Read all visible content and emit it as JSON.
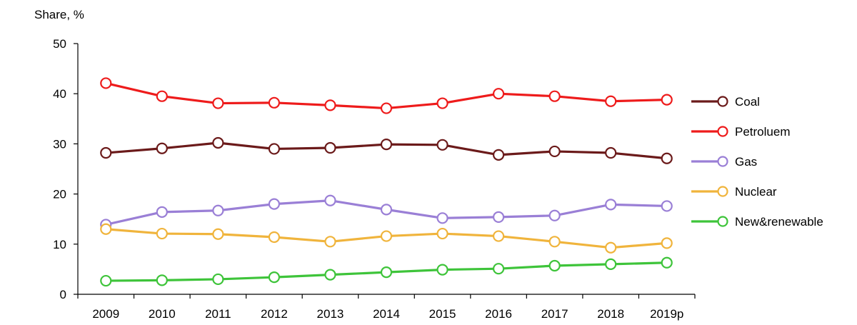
{
  "chart_data": {
    "type": "line",
    "ylabel": "Share, %",
    "xlabel": "",
    "ylim": [
      0,
      50
    ],
    "yticks": [
      0,
      10,
      20,
      30,
      40,
      50
    ],
    "categories": [
      "2009",
      "2010",
      "2011",
      "2012",
      "2013",
      "2014",
      "2015",
      "2016",
      "2017",
      "2018",
      "2019p"
    ],
    "grid": false,
    "legend_position": "right",
    "series": [
      {
        "name": "Coal",
        "color": "#6b1a1a",
        "values": [
          28.2,
          29.1,
          30.2,
          29.0,
          29.2,
          29.9,
          29.8,
          27.8,
          28.5,
          28.2,
          27.1
        ]
      },
      {
        "name": "Petroluem",
        "color": "#ee1b1b",
        "values": [
          42.1,
          39.5,
          38.1,
          38.2,
          37.7,
          37.1,
          38.1,
          40.0,
          39.5,
          38.5,
          38.8
        ]
      },
      {
        "name": "Gas",
        "color": "#9a7fd6",
        "values": [
          13.9,
          16.4,
          16.7,
          18.0,
          18.7,
          16.9,
          15.2,
          15.4,
          15.7,
          17.9,
          17.6
        ]
      },
      {
        "name": "Nuclear",
        "color": "#f0b43c",
        "values": [
          13.0,
          12.1,
          12.0,
          11.4,
          10.5,
          11.6,
          12.1,
          11.6,
          10.5,
          9.3,
          10.2
        ]
      },
      {
        "name": "New&renewable",
        "color": "#3ec43a",
        "values": [
          2.7,
          2.8,
          3.0,
          3.4,
          3.9,
          4.4,
          4.9,
          5.1,
          5.7,
          6.0,
          6.3
        ]
      }
    ]
  }
}
